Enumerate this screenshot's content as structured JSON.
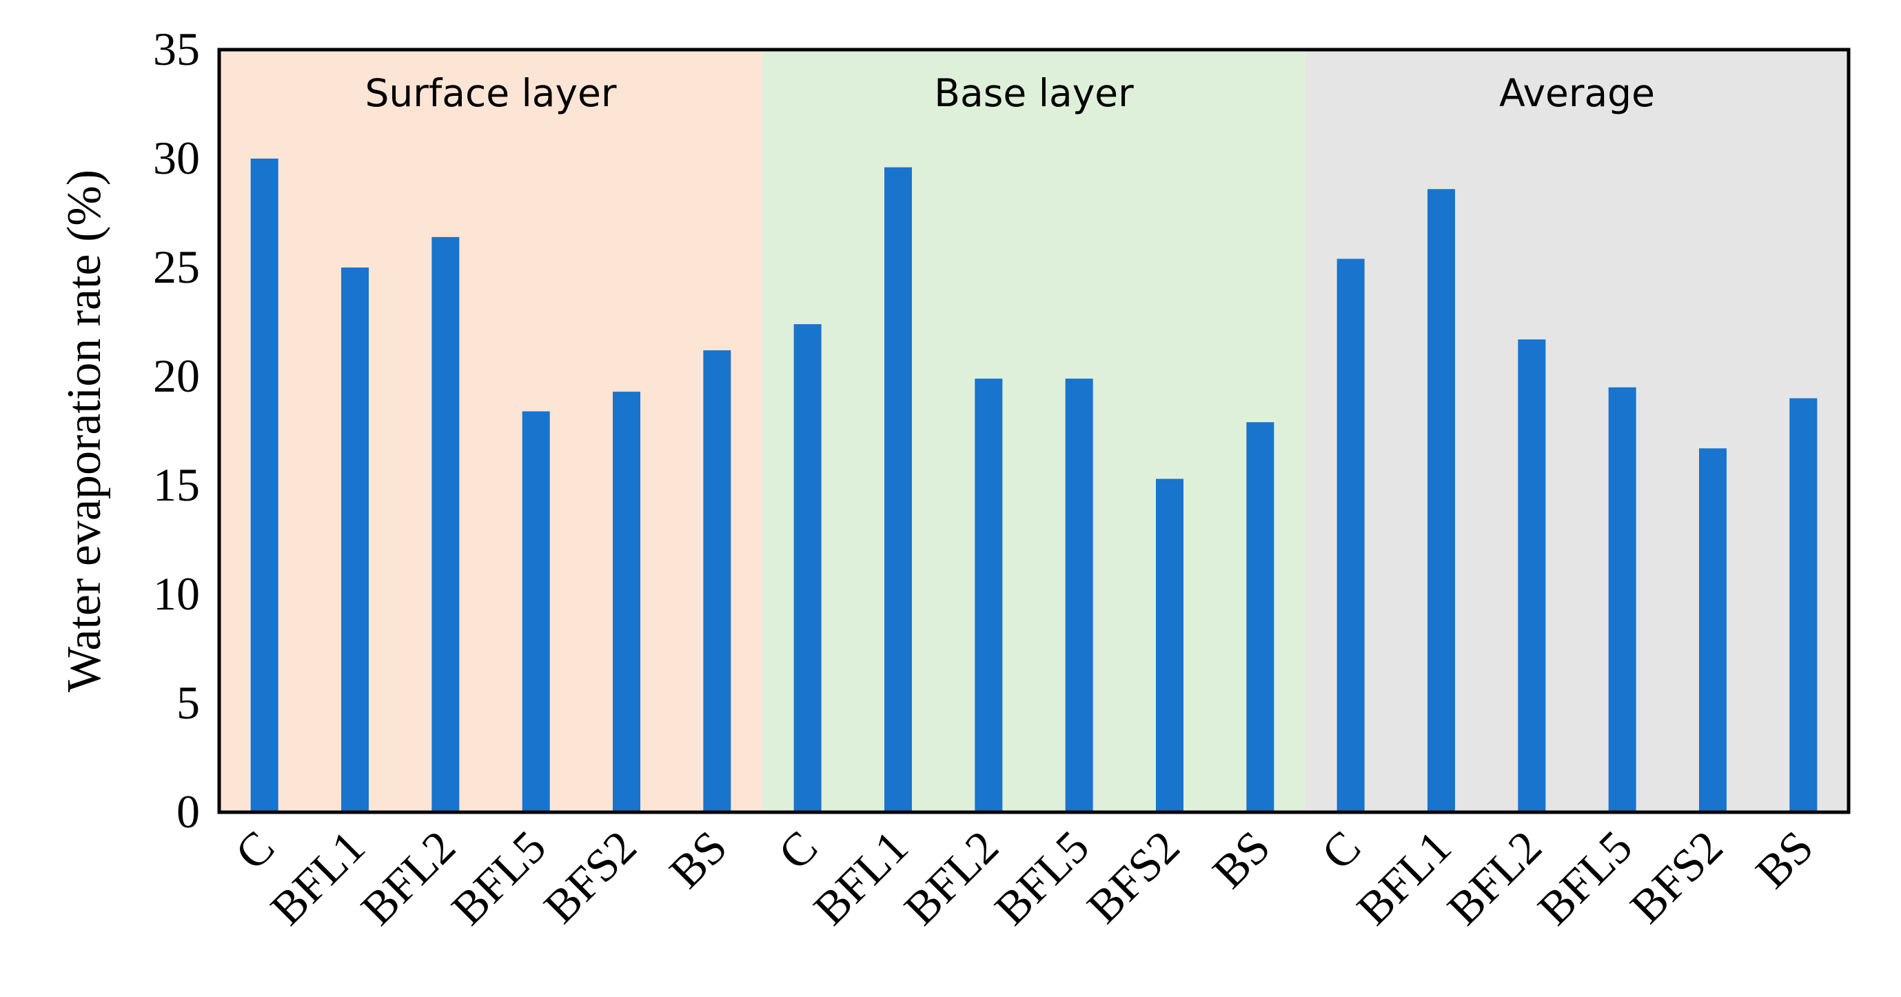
{
  "chart_data": {
    "type": "bar",
    "ylabel": "Water evaporation rate (%)",
    "xlabel": "",
    "ylim": [
      0,
      35
    ],
    "yticks": [
      0,
      5,
      10,
      15,
      20,
      25,
      30,
      35
    ],
    "grid": false,
    "bar_color": "#1874CD",
    "panels": [
      {
        "label": "Surface layer",
        "background": "#FDE5D6",
        "categories": [
          "C",
          "BFL1",
          "BFL2",
          "BFL5",
          "BFS2",
          "BS"
        ],
        "values": [
          30.0,
          25.0,
          26.4,
          18.4,
          19.3,
          21.2
        ]
      },
      {
        "label": "Base layer",
        "background": "#DFF0DA",
        "categories": [
          "C",
          "BFL1",
          "BFL2",
          "BFL5",
          "BFS2",
          "BS"
        ],
        "values": [
          22.4,
          29.6,
          19.9,
          19.9,
          15.3,
          17.9
        ]
      },
      {
        "label": "Average",
        "background": "#E5E5E5",
        "categories": [
          "C",
          "BFL1",
          "BFL2",
          "BFL5",
          "BFS2",
          "BS"
        ],
        "values": [
          25.4,
          28.6,
          21.7,
          19.5,
          16.7,
          19.0
        ]
      }
    ]
  }
}
